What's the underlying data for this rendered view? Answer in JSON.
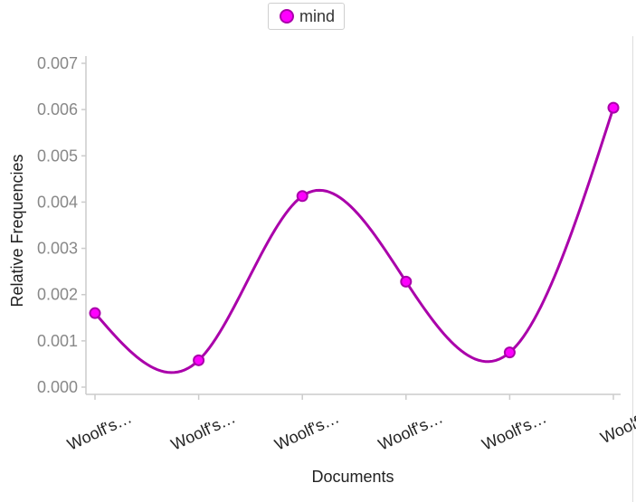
{
  "chart_data": {
    "type": "line",
    "categories": [
      "Woolf's…",
      "Woolf's…",
      "Woolf's…",
      "Woolf's…",
      "Woolf's…",
      "Woolf's"
    ],
    "series": [
      {
        "name": "mind",
        "values": [
          0.0016,
          0.00058,
          0.00413,
          0.00228,
          0.00075,
          0.00604
        ],
        "line_color": "#aa00aa",
        "marker_color": "#ff00ff"
      }
    ],
    "title": "",
    "xlabel": "Documents",
    "ylabel": "Relative Frequencies",
    "ylim": [
      0,
      0.007
    ],
    "yticks": [
      "0.000",
      "0.001",
      "0.002",
      "0.003",
      "0.004",
      "0.005",
      "0.006",
      "0.007"
    ],
    "smooth": true,
    "grid": false,
    "legend": "top-center"
  }
}
